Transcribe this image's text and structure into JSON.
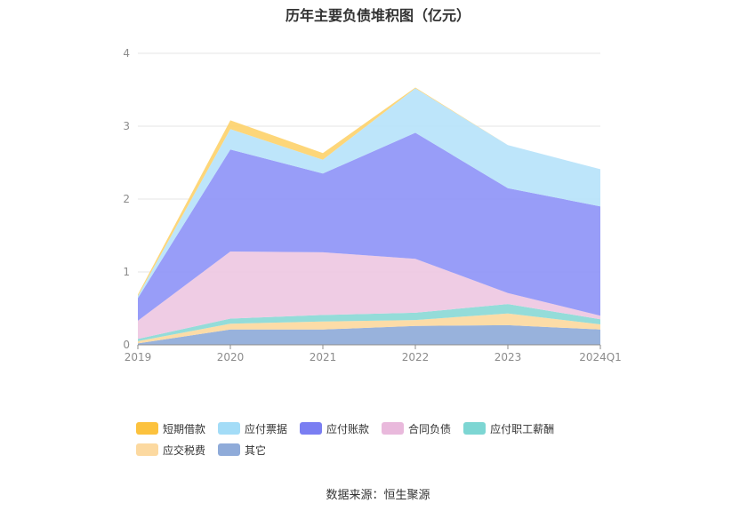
{
  "chart_data": {
    "type": "area",
    "title": "历年主要负债堆积图（亿元）",
    "categories": [
      "2019",
      "2020",
      "2021",
      "2022",
      "2023",
      "2024Q1"
    ],
    "ylim": [
      0,
      4
    ],
    "yticks": [
      "0",
      "1",
      "2",
      "3",
      "4"
    ],
    "stacked": true,
    "grid": true,
    "legend_position": "bottom",
    "series": [
      {
        "name": "其它",
        "color": "#8fabd9",
        "values": [
          0.02,
          0.21,
          0.21,
          0.26,
          0.27,
          0.21
        ]
      },
      {
        "name": "应交税费",
        "color": "#fcd9a0",
        "values": [
          0.03,
          0.08,
          0.11,
          0.08,
          0.16,
          0.07
        ]
      },
      {
        "name": "应付职工薪酬",
        "color": "#8bd9d6",
        "values": [
          0.03,
          0.07,
          0.09,
          0.1,
          0.13,
          0.07
        ]
      },
      {
        "name": "合同负债",
        "color": "#eec8e2",
        "values": [
          0.25,
          0.92,
          0.86,
          0.74,
          0.15,
          0.05
        ]
      },
      {
        "name": "应付账款",
        "color": "#8f95f7",
        "values": [
          0.31,
          1.4,
          1.08,
          1.73,
          1.44,
          1.5
        ]
      },
      {
        "name": "应付票据",
        "color": "#b7e3fa",
        "values": [
          0.03,
          0.28,
          0.19,
          0.61,
          0.59,
          0.51
        ]
      },
      {
        "name": "短期借款",
        "color": "#fdd36e",
        "values": [
          0.02,
          0.12,
          0.09,
          0.01,
          0.0,
          0.0
        ]
      }
    ]
  },
  "legend": {
    "items": [
      {
        "label": "短期借款",
        "color": "#fcc23e"
      },
      {
        "label": "应付票据",
        "color": "#a3dcf7"
      },
      {
        "label": "应付账款",
        "color": "#7a7ef2"
      },
      {
        "label": "合同负债",
        "color": "#e9b9dc"
      },
      {
        "label": "应付职工薪酬",
        "color": "#7dd6d3"
      },
      {
        "label": "应交税费",
        "color": "#fcd9a0"
      },
      {
        "label": "其它",
        "color": "#8fabd9"
      }
    ]
  },
  "source": "数据来源：恒生聚源"
}
